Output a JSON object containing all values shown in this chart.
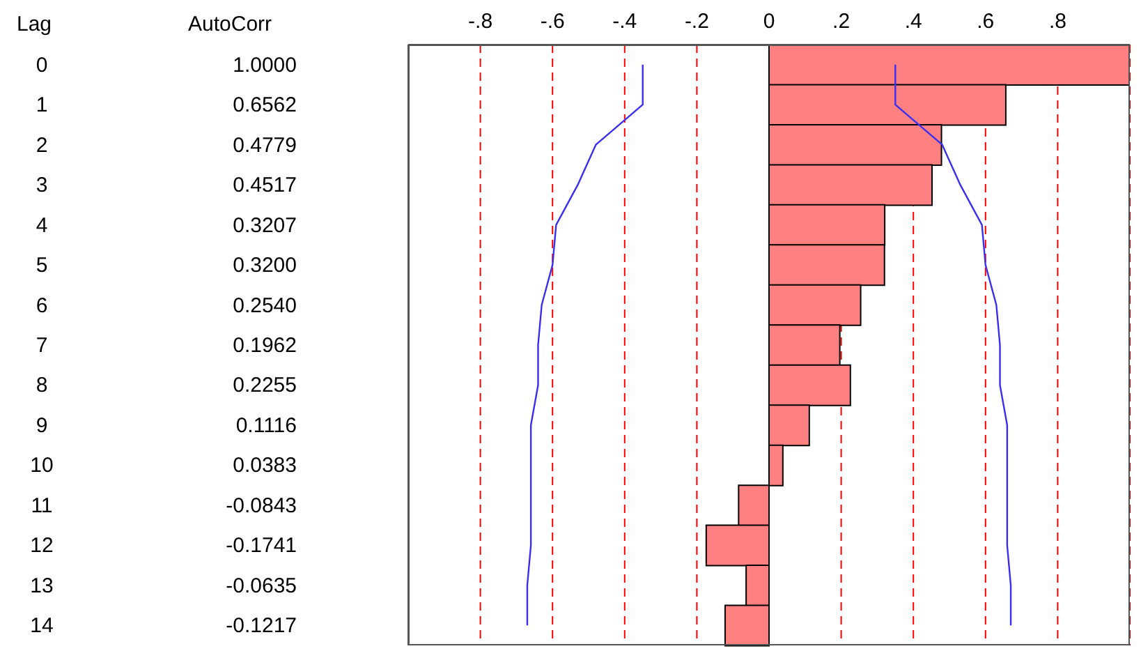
{
  "chart_data": {
    "type": "bar",
    "orientation": "horizontal",
    "ylabel": "Lag",
    "annotations": [
      "AutoCorr"
    ],
    "categories": [
      "0",
      "1",
      "2",
      "3",
      "4",
      "5",
      "6",
      "7",
      "8",
      "9",
      "10",
      "11",
      "12",
      "13",
      "14"
    ],
    "series": [
      {
        "color": "#ff8080",
        "values": [
          1.0,
          0.6562,
          0.4779,
          0.4517,
          0.3207,
          0.32,
          0.254,
          0.1962,
          0.2255,
          0.1116,
          0.0383,
          -0.0843,
          -0.1741,
          -0.0635,
          -0.1217
        ],
        "value_labels": [
          "1.0000",
          "0.6562",
          "0.4779",
          "0.4517",
          "0.3207",
          "0.3200",
          "0.2540",
          "0.1962",
          "0.2255",
          "0.1116",
          "0.0383",
          "-0.0843",
          "-0.1741",
          "-0.0635",
          "-0.1217"
        ]
      },
      {
        "type": "line",
        "color": "#3a2ff0",
        "values": [
          0.35,
          0.35,
          0.48,
          0.53,
          0.59,
          0.6,
          0.63,
          0.64,
          0.64,
          0.66,
          0.66,
          0.66,
          0.66,
          0.67,
          0.67
        ]
      },
      {
        "type": "line",
        "color": "#3a2ff0",
        "values": [
          -0.35,
          -0.35,
          -0.48,
          -0.53,
          -0.59,
          -0.6,
          -0.63,
          -0.64,
          -0.64,
          -0.66,
          -0.66,
          -0.66,
          -0.66,
          -0.67,
          -0.67
        ]
      }
    ],
    "x2lim": [
      -1,
      1
    ],
    "x2ticks": [
      {
        "value": -0.8,
        "label": "-.8"
      },
      {
        "value": -0.6,
        "label": "-.6"
      },
      {
        "value": -0.4,
        "label": "-.4"
      },
      {
        "value": -0.2,
        "label": "-.2"
      },
      0,
      {
        "value": 0.2,
        "label": ".2"
      },
      {
        "value": 0.4,
        "label": ".4"
      },
      {
        "value": 0.6,
        "label": ".6"
      },
      {
        "value": 0.8,
        "label": ".8"
      }
    ],
    "grid": "x",
    "legend": false,
    "marker": "none",
    "line_style": "solid"
  }
}
